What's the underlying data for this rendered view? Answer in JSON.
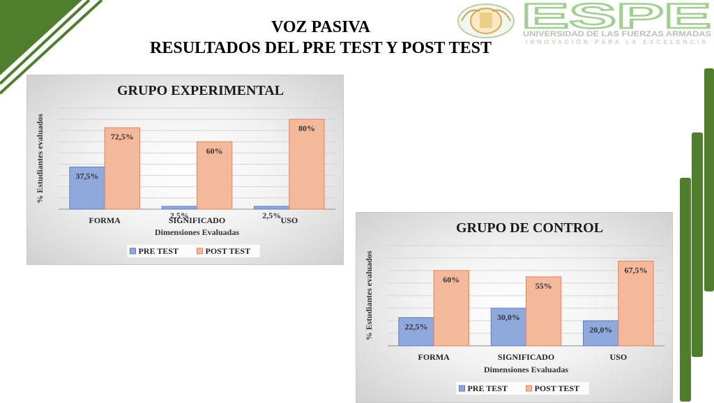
{
  "slide": {
    "title_line1": "VOZ PASIVA",
    "title_line2": "RESULTADOS DEL PRE TEST Y POST TEST"
  },
  "logo": {
    "name": "ESPE",
    "subtitle": "UNIVERSIDAD DE LAS FUERZAS ARMADAS",
    "tagline": "INNOVACIÓN PARA LA EXCELENCIA"
  },
  "colors": {
    "pre_fill": "#8fa9dc",
    "pre_stroke": "#5b7cc4",
    "post_fill": "#f4b89a",
    "post_stroke": "#e0845a",
    "accent_green": "#4f7f2c",
    "logo_green": "#7dbb6a"
  },
  "chart_data": [
    {
      "type": "bar",
      "title": "GRUPO EXPERIMENTAL",
      "xlabel": "Dimensiones Evaluadas",
      "ylabel": "% Estudiantes evaluados",
      "categories": [
        "FORMA",
        "SIGNIFICADO",
        "USO"
      ],
      "series": [
        {
          "name": "PRE TEST",
          "values": [
            37.5,
            2.5,
            2.5
          ],
          "labels": [
            "37,5%",
            "2,5%",
            "2,5%"
          ]
        },
        {
          "name": "POST TEST",
          "values": [
            72.5,
            60,
            80
          ],
          "labels": [
            "72,5%",
            "60%",
            "80%"
          ]
        }
      ],
      "ylim": [
        0,
        90
      ],
      "grid": true,
      "legend": "bottom"
    },
    {
      "type": "bar",
      "title": "GRUPO DE CONTROL",
      "xlabel": "Dimensiones Evaluadas",
      "ylabel": "% Estudiantes evaluados",
      "categories": [
        "FORMA",
        "SIGNIFICADO",
        "USO"
      ],
      "series": [
        {
          "name": "PRE TEST",
          "values": [
            22.5,
            30.0,
            20.0
          ],
          "labels": [
            "22,5%",
            "30,0%",
            "20,0%"
          ]
        },
        {
          "name": "POST TEST",
          "values": [
            60,
            55,
            67.5
          ],
          "labels": [
            "60%",
            "55%",
            "67,5%"
          ]
        }
      ],
      "ylim": [
        0,
        80
      ],
      "grid": true,
      "legend": "bottom"
    }
  ]
}
